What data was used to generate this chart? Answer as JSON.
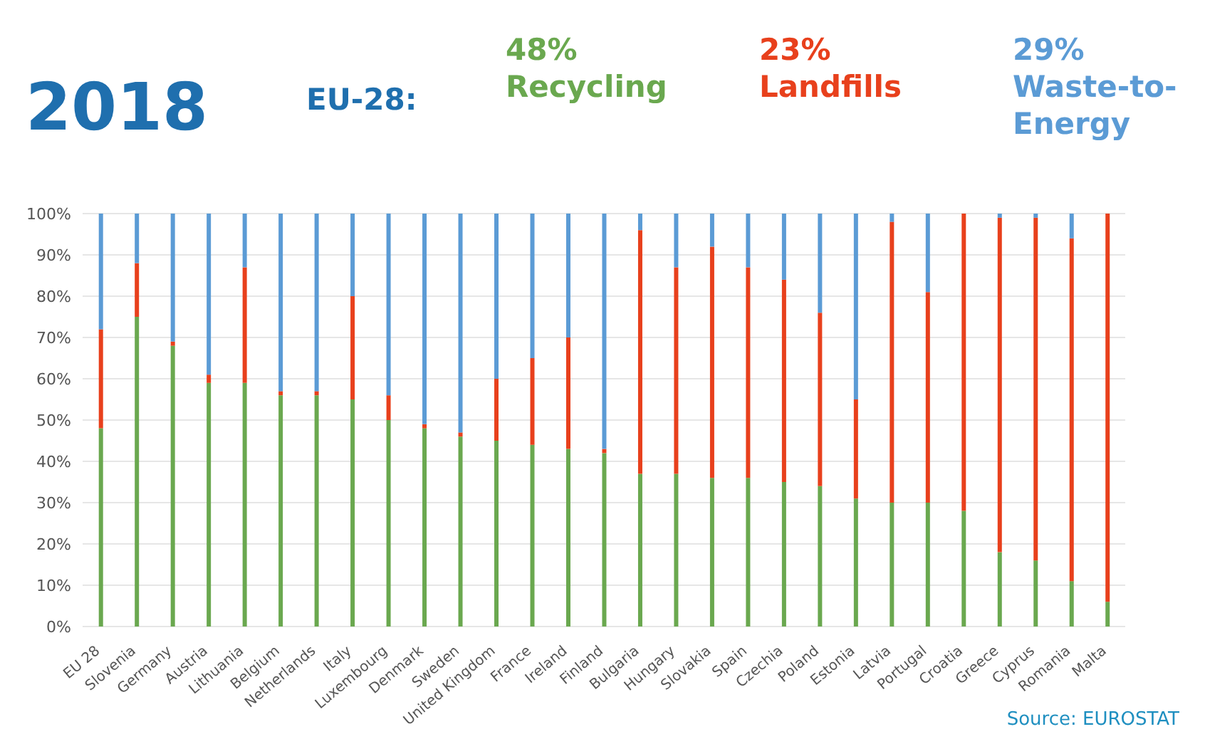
{
  "chart_data": {
    "type": "bar",
    "title": "2018",
    "subtitle": "EU-28:",
    "stacked": true,
    "categories": [
      "EU 28",
      "Slovenia",
      "Germany",
      "Austria",
      "Lithuania",
      "Belgium",
      "Netherlands",
      "Italy",
      "Luxembourg",
      "Denmark",
      "Sweden",
      "United Kingdom",
      "France",
      "Ireland",
      "Finland",
      "Bulgaria",
      "Hungary",
      "Slovakia",
      "Spain",
      "Czechia",
      "Poland",
      "Estonia",
      "Latvia",
      "Portugal",
      "Croatia",
      "Greece",
      "Cyprus",
      "Romania",
      "Malta"
    ],
    "series": [
      {
        "name": "Recycling",
        "color": "#6aa84f",
        "values": [
          48,
          75,
          68,
          59,
          59,
          56,
          56,
          55,
          50,
          48,
          46,
          45,
          44,
          43,
          42,
          37,
          37,
          36,
          36,
          35,
          34,
          31,
          30,
          30,
          28,
          18,
          16,
          11,
          6
        ]
      },
      {
        "name": "Landfills",
        "color": "#e8401c",
        "values": [
          24,
          13,
          1,
          2,
          28,
          1,
          1,
          25,
          6,
          1,
          1,
          15,
          21,
          27,
          1,
          59,
          50,
          56,
          51,
          49,
          42,
          24,
          68,
          51,
          72,
          81,
          83,
          83,
          94
        ]
      },
      {
        "name": "Waste-to-Energy",
        "color": "#5b9bd5",
        "values": [
          28,
          12,
          31,
          39,
          13,
          43,
          43,
          20,
          44,
          51,
          53,
          40,
          35,
          30,
          57,
          4,
          13,
          8,
          13,
          16,
          24,
          45,
          2,
          19,
          0,
          1,
          1,
          6,
          0
        ]
      }
    ],
    "ylim": [
      0,
      100
    ],
    "yticks": [
      {
        "value": 0,
        "label": "0%"
      },
      {
        "value": 10,
        "label": "10%"
      },
      {
        "value": 20,
        "label": "20%"
      },
      {
        "value": 30,
        "label": "30%"
      },
      {
        "value": 40,
        "label": "40%"
      },
      {
        "value": 50,
        "label": "50%"
      },
      {
        "value": 60,
        "label": "60%"
      },
      {
        "value": 70,
        "label": "70%"
      },
      {
        "value": 80,
        "label": "80%"
      },
      {
        "value": 90,
        "label": "90%"
      },
      {
        "value": 100,
        "label": "100%"
      }
    ],
    "grid": "y",
    "legend": "top",
    "annotations": [
      "48%",
      "23%",
      "29%",
      "Source: EUROSTAT"
    ]
  }
}
